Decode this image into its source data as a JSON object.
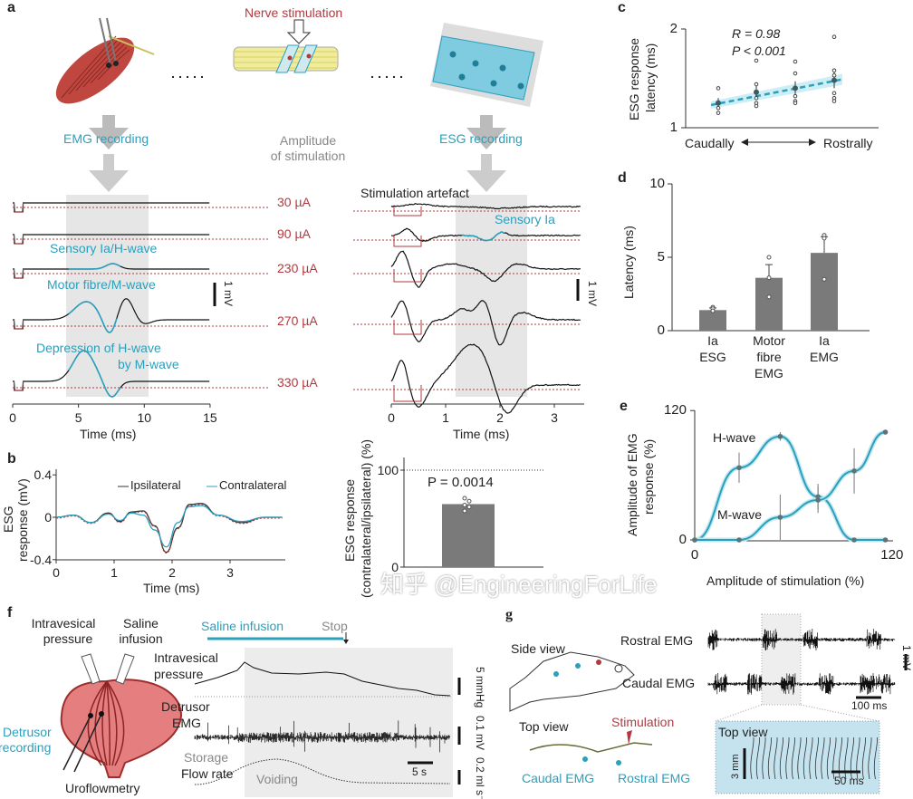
{
  "panel_labels": {
    "a": "a",
    "b": "b",
    "c": "c",
    "d": "d",
    "e": "e",
    "f": "f",
    "g": "g"
  },
  "colors": {
    "teal": "#2aa0bd",
    "red": "#b23a3f",
    "bar": "#7a7a7a",
    "shade": "#e6e6e6"
  },
  "panel_a": {
    "nerve_stimulation": "Nerve stimulation",
    "emg_recording": "EMG recording",
    "amplitude_line1": "Amplitude",
    "amplitude_line2": "of stimulation",
    "esg_recording": "ESG recording",
    "amplitudes": [
      "30 µA",
      "90 µA",
      "230 µA",
      "270 µA",
      "330 µA"
    ],
    "emg_labels": {
      "h_wave": "Sensory Ia/H-wave",
      "m_wave": "Motor fibre/M-wave",
      "depression_1": "Depression of H-wave",
      "depression_2": "by M-wave"
    },
    "emg_scale": "1 mV",
    "esg_labels": {
      "artefact": "Stimulation artefact",
      "sensory": "Sensory Ia"
    },
    "esg_scale": "1 mV",
    "emg_xticks": [
      "0",
      "5",
      "10",
      "15"
    ],
    "esg_xticks": [
      "0",
      "1",
      "2",
      "3"
    ],
    "xlabel": "Time (ms)"
  },
  "panel_f": {
    "intravesical_1": "Intravesical",
    "intravesical_2": "pressure",
    "saline_1": "Saline",
    "saline_2": "infusion",
    "detrusor_rec_1": "Detrusor",
    "detrusor_rec_2": "recording",
    "uroflowmetry": "Uroflowmetry",
    "saline_infusion": "Saline infusion",
    "stop": "Stop",
    "trace_pressure_1": "Intravesical",
    "trace_pressure_2": "pressure",
    "trace_emg_1": "Detrusor",
    "trace_emg_2": "EMG",
    "storage": "Storage",
    "flow_rate": "Flow rate",
    "voiding": "Voiding",
    "scale_time": "5 s",
    "scale_pressure": "5 mmHg",
    "scale_emg": "0.1 mV",
    "scale_flow": "0.2 ml s⁻¹"
  },
  "panel_g": {
    "side_view": "Side view",
    "top_view": "Top view",
    "stimulation": "Stimulation",
    "caudal_emg": "Caudal EMG",
    "rostral_emg": "Rostral EMG",
    "trace_rostral": "Rostral EMG",
    "trace_caudal": "Caudal EMG",
    "scale_mv": "1 mV",
    "scale_ms": "100 ms",
    "inset_title": "Top view",
    "inset_scale_mm": "3 mm",
    "inset_scale_ms": "50 ms"
  },
  "watermark": "知乎 @EngineeringForLife",
  "chart_data": [
    {
      "id": "b-left",
      "type": "line",
      "ylabel_1": "ESG",
      "ylabel_2": "response (mV)",
      "xlabel": "Time (ms)",
      "xticks": [
        "0",
        "1",
        "2",
        "3"
      ],
      "yticks": [
        "0.4",
        "0",
        "-0.4"
      ],
      "xlim": [
        0,
        3.9
      ],
      "ylim": [
        -0.4,
        0.4
      ],
      "legend": [
        "Ipsilateral",
        "Contralateral"
      ],
      "legend_position": "top-right",
      "series": [
        {
          "name": "Ipsilateral",
          "x": [
            0,
            0.3,
            0.6,
            0.9,
            1.1,
            1.3,
            1.5,
            1.7,
            1.9,
            2.1,
            2.3,
            2.5,
            2.8,
            3.2,
            3.6,
            3.9
          ],
          "y": [
            0,
            0.02,
            -0.05,
            0.04,
            -0.04,
            0.05,
            0.06,
            -0.08,
            -0.33,
            -0.1,
            0.12,
            0.13,
            0.02,
            -0.05,
            0,
            0
          ]
        },
        {
          "name": "Contralateral",
          "x": [
            0,
            0.3,
            0.6,
            0.9,
            1.1,
            1.3,
            1.5,
            1.7,
            1.9,
            2.1,
            2.3,
            2.5,
            2.8,
            3.2,
            3.6,
            3.9
          ],
          "y": [
            0,
            0.02,
            -0.05,
            0.03,
            -0.03,
            0.04,
            0.02,
            -0.12,
            -0.28,
            -0.05,
            0.1,
            0.11,
            0.02,
            -0.04,
            0,
            0
          ]
        }
      ]
    },
    {
      "id": "b-right",
      "type": "bar",
      "ylabel_1": "ESG response",
      "ylabel_2": "(contralateral/ipsilateral) (%)",
      "yticks": [
        "0",
        "100"
      ],
      "ylim": [
        0,
        110
      ],
      "values": [
        65
      ],
      "points": [
        58,
        62,
        64,
        68,
        71
      ],
      "annotation": "P = 0.0014",
      "reference_line": 100
    },
    {
      "id": "c",
      "type": "scatter",
      "ylabel_1": "ESG response",
      "ylabel_2": "latency (ms)",
      "yticks": [
        "1",
        "2"
      ],
      "ylim": [
        1,
        2
      ],
      "x_left": "Caudally",
      "x_right": "Rostrally",
      "stat_r": "R = 0.98",
      "stat_p": "P < 0.001",
      "means": [
        1.25,
        1.36,
        1.4,
        1.48
      ],
      "errors": [
        0.05,
        0.07,
        0.07,
        0.08
      ],
      "points": [
        [
          1.4,
          1.25,
          1.2,
          1.15
        ],
        [
          1.68,
          1.44,
          1.3,
          1.25,
          1.22
        ],
        [
          1.67,
          1.55,
          1.32,
          1.27,
          1.25
        ],
        [
          1.92,
          1.58,
          1.53,
          1.35,
          1.3,
          1.27
        ]
      ],
      "fit": [
        1.23,
        1.49
      ]
    },
    {
      "id": "d",
      "type": "bar",
      "ylabel": "Latency (ms)",
      "yticks": [
        "0",
        "5",
        "10"
      ],
      "ylim": [
        0,
        10
      ],
      "categories": [
        [
          "Ia",
          "ESG"
        ],
        [
          "Motor",
          "fibre",
          "EMG"
        ],
        [
          "Ia",
          "EMG"
        ]
      ],
      "values": [
        1.4,
        3.6,
        5.3
      ],
      "errors": [
        0.15,
        0.9,
        1.1
      ],
      "points": [
        [
          1.6,
          1.5,
          1.35
        ],
        [
          5,
          3.6,
          2.3
        ],
        [
          6.5,
          6.3,
          3.5
        ]
      ]
    },
    {
      "id": "e",
      "type": "line",
      "ylabel_1": "Amplitude of EMG",
      "ylabel_2": "response (%)",
      "xlabel": "Amplitude of stimulation (%)",
      "xticks": [
        "0",
        "120"
      ],
      "yticks": [
        "0",
        "120"
      ],
      "xlim": [
        0,
        120
      ],
      "ylim": [
        0,
        120
      ],
      "series": [
        {
          "name": "H-wave",
          "x": [
            0,
            27,
            52,
            75,
            97,
            116
          ],
          "y": [
            0,
            67,
            96,
            40,
            0,
            0
          ],
          "err": [
            0,
            14,
            4,
            12,
            0,
            0
          ]
        },
        {
          "name": "M-wave",
          "x": [
            0,
            27,
            52,
            75,
            97,
            116
          ],
          "y": [
            0,
            0,
            21,
            37,
            64,
            100
          ],
          "err": [
            0,
            0,
            21,
            12,
            21,
            2
          ]
        }
      ]
    }
  ]
}
